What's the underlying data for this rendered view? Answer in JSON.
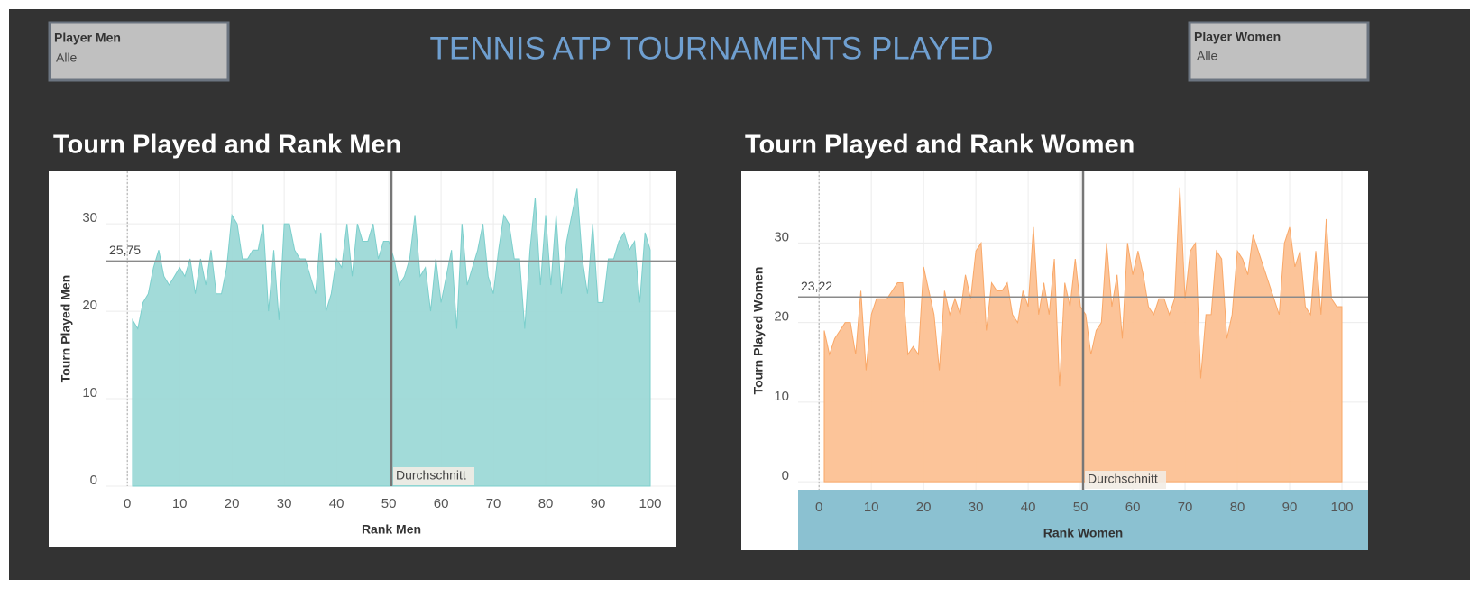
{
  "header": {
    "title": "TENNIS ATP TOURNAMENTS PLAYED"
  },
  "filters": [
    {
      "label": "Player Men",
      "value": "Alle"
    },
    {
      "label": "Player Women",
      "value": "Alle"
    }
  ],
  "chart_data": [
    {
      "type": "area",
      "title": "Tourn Played and Rank Men",
      "x_label": "Rank Men",
      "y_label": "Tourn Played Men",
      "x": [
        1,
        2,
        3,
        4,
        5,
        6,
        7,
        8,
        9,
        10,
        11,
        12,
        13,
        14,
        15,
        16,
        17,
        18,
        19,
        20,
        21,
        22,
        23,
        24,
        25,
        26,
        27,
        28,
        29,
        30,
        31,
        32,
        33,
        34,
        35,
        36,
        37,
        38,
        39,
        40,
        41,
        42,
        43,
        44,
        45,
        46,
        47,
        48,
        49,
        50,
        51,
        52,
        53,
        54,
        55,
        56,
        57,
        58,
        59,
        60,
        61,
        62,
        63,
        64,
        65,
        66,
        67,
        68,
        69,
        70,
        71,
        72,
        73,
        74,
        75,
        76,
        77,
        78,
        79,
        80,
        81,
        82,
        83,
        84,
        85,
        86,
        87,
        88,
        89,
        90,
        91,
        92,
        93,
        94,
        95,
        96,
        97,
        98,
        99,
        100
      ],
      "values": [
        19,
        18,
        21,
        22,
        25,
        27,
        24,
        23,
        24,
        25,
        24,
        26,
        22,
        26,
        23,
        27,
        22,
        22,
        25,
        31,
        30,
        26,
        26,
        27,
        27,
        30,
        20,
        27,
        19,
        30,
        30,
        27,
        26,
        26,
        24,
        22,
        29,
        20,
        22,
        26,
        25,
        30,
        24,
        30,
        28,
        28,
        30,
        26,
        28,
        28,
        26,
        23,
        24,
        26,
        31,
        24,
        25,
        20,
        26,
        21,
        24,
        27,
        18,
        30,
        23,
        25,
        27,
        30,
        24,
        22,
        27,
        31,
        30,
        26,
        26,
        18,
        27,
        33,
        23,
        31,
        23,
        31,
        22,
        28,
        31,
        34,
        26,
        22,
        30,
        21,
        21,
        26,
        26,
        28,
        29,
        27,
        28,
        21,
        29,
        27
      ],
      "color": "#9dd9d7",
      "xlim": [
        -4,
        105
      ],
      "ylim": [
        0,
        36
      ],
      "xticks": [
        0,
        10,
        20,
        30,
        40,
        50,
        60,
        70,
        80,
        90,
        100
      ],
      "yticks": [
        0,
        10,
        20,
        30
      ],
      "grid": true,
      "y_reference": {
        "value": 25.75,
        "label": "25,75"
      },
      "x_reference": {
        "value": 50.5,
        "label": "Durchschnitt"
      }
    },
    {
      "type": "area",
      "title": "Tourn Played and Rank Women",
      "x_label": "Rank Women",
      "y_label": "Tourn Played Women",
      "x": [
        1,
        2,
        3,
        4,
        5,
        6,
        7,
        8,
        9,
        10,
        11,
        12,
        13,
        14,
        15,
        16,
        17,
        18,
        19,
        20,
        21,
        22,
        23,
        24,
        25,
        26,
        27,
        28,
        29,
        30,
        31,
        32,
        33,
        34,
        35,
        36,
        37,
        38,
        39,
        40,
        41,
        42,
        43,
        44,
        45,
        46,
        47,
        48,
        49,
        50,
        51,
        52,
        53,
        54,
        55,
        56,
        57,
        58,
        59,
        60,
        61,
        62,
        63,
        64,
        65,
        66,
        67,
        68,
        69,
        70,
        71,
        72,
        73,
        74,
        75,
        76,
        77,
        78,
        79,
        80,
        81,
        82,
        83,
        84,
        85,
        86,
        87,
        88,
        89,
        90,
        91,
        92,
        93,
        94,
        95,
        96,
        97,
        98,
        99,
        100
      ],
      "values": [
        19,
        16,
        18,
        19,
        20,
        20,
        16,
        24,
        14,
        21,
        23,
        23,
        23,
        24,
        25,
        25,
        16,
        17,
        16,
        27,
        24,
        21,
        14,
        24,
        21,
        23,
        21,
        26,
        23,
        29,
        30,
        19,
        25,
        24,
        24,
        25,
        21,
        20,
        24,
        22,
        32,
        21,
        25,
        21,
        28,
        12,
        25,
        22,
        28,
        22,
        21,
        16,
        19,
        20,
        30,
        22,
        26,
        18,
        30,
        26,
        29,
        26,
        22,
        21,
        23,
        23,
        21,
        23,
        37,
        23,
        29,
        30,
        13,
        21,
        21,
        29,
        28,
        18,
        21,
        29,
        28,
        26,
        31,
        29,
        27,
        25,
        23,
        21,
        30,
        32,
        27,
        29,
        22,
        21,
        29,
        21,
        33,
        23,
        22,
        22
      ],
      "color": "#fcc193",
      "xlim": [
        -4,
        105
      ],
      "ylim": [
        -1,
        39
      ],
      "xticks": [
        0,
        10,
        20,
        30,
        40,
        50,
        60,
        70,
        80,
        90,
        100
      ],
      "yticks": [
        0,
        10,
        20,
        30
      ],
      "grid": true,
      "y_reference": {
        "value": 23.22,
        "label": "23,22"
      },
      "x_reference": {
        "value": 50.5,
        "label": "Durchschnitt"
      }
    }
  ]
}
